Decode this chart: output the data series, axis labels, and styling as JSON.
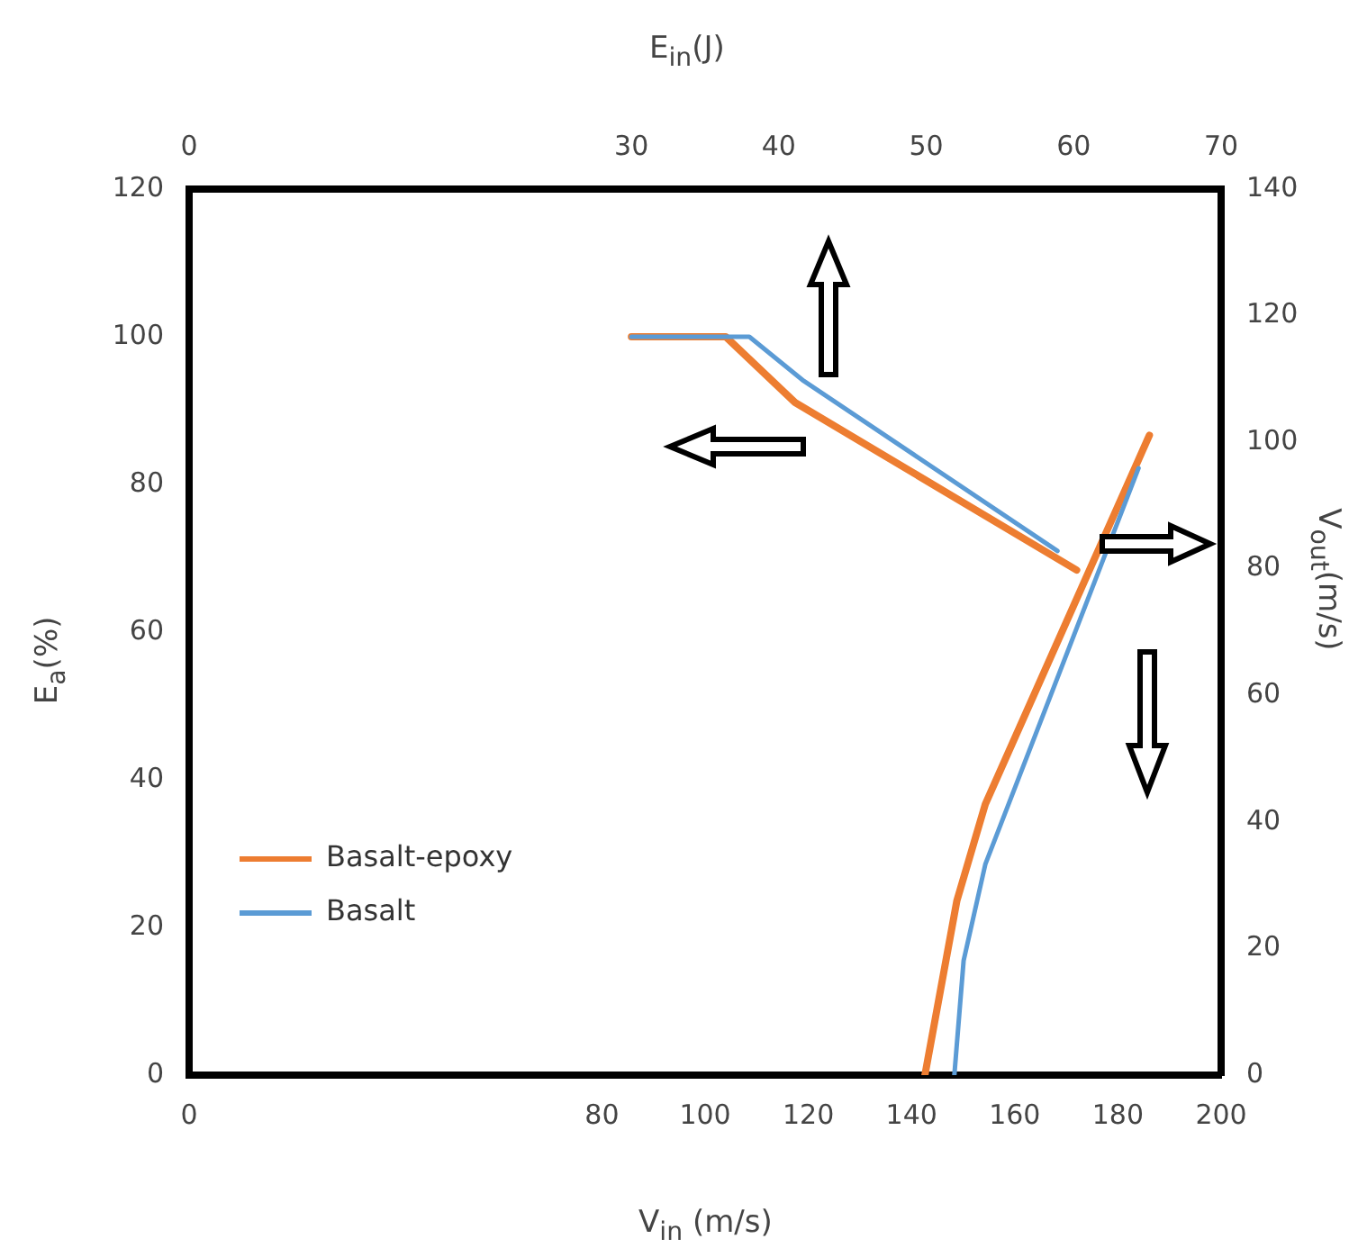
{
  "chart_data": {
    "type": "line",
    "xlabel": "V$_{in}$ (m/s)",
    "ylabel": "E$_{a}$(%)",
    "x2label": "E$_{in}$(J)",
    "y2label": "V$_{out}$(m/s)",
    "xlim": [
      0,
      200
    ],
    "xticks": [
      0,
      80,
      100,
      120,
      140,
      160,
      180,
      200
    ],
    "x2lim": [
      0,
      70
    ],
    "x2ticks": [
      0,
      30,
      40,
      50,
      60,
      70
    ],
    "ylim": [
      0,
      120
    ],
    "yticks": [
      0,
      20,
      40,
      60,
      80,
      100,
      120
    ],
    "y2lim": [
      0,
      140
    ],
    "y2ticks": [
      0,
      20,
      40,
      60,
      80,
      100,
      120,
      140
    ],
    "series": [
      {
        "name": "Basalt-epoxy",
        "color": "#ed7d31",
        "axis": "x2",
        "x": [
          30,
          36.4,
          41.1,
          60.2
        ],
        "values": [
          100,
          100,
          91.1,
          68.4
        ]
      },
      {
        "name": "Basalt",
        "color": "#5b9bd5",
        "axis": "x2",
        "x": [
          30,
          38,
          41.7,
          58.9
        ],
        "values": [
          100,
          100,
          94,
          71
        ]
      },
      {
        "color": "#ed7d31",
        "axis": "y2",
        "x": [
          142.6,
          148.8,
          154.3,
          186.1
        ],
        "values": [
          0,
          27.6,
          42.8,
          101.1
        ]
      },
      {
        "color": "#5b9bd5",
        "axis": "y2",
        "x": [
          148.3,
          150.1,
          154.3,
          184
        ],
        "values": [
          0,
          18.1,
          33.3,
          95.9
        ]
      }
    ],
    "grid": false,
    "legend": "bottom left",
    "marker": "none",
    "line_style": "solid"
  }
}
